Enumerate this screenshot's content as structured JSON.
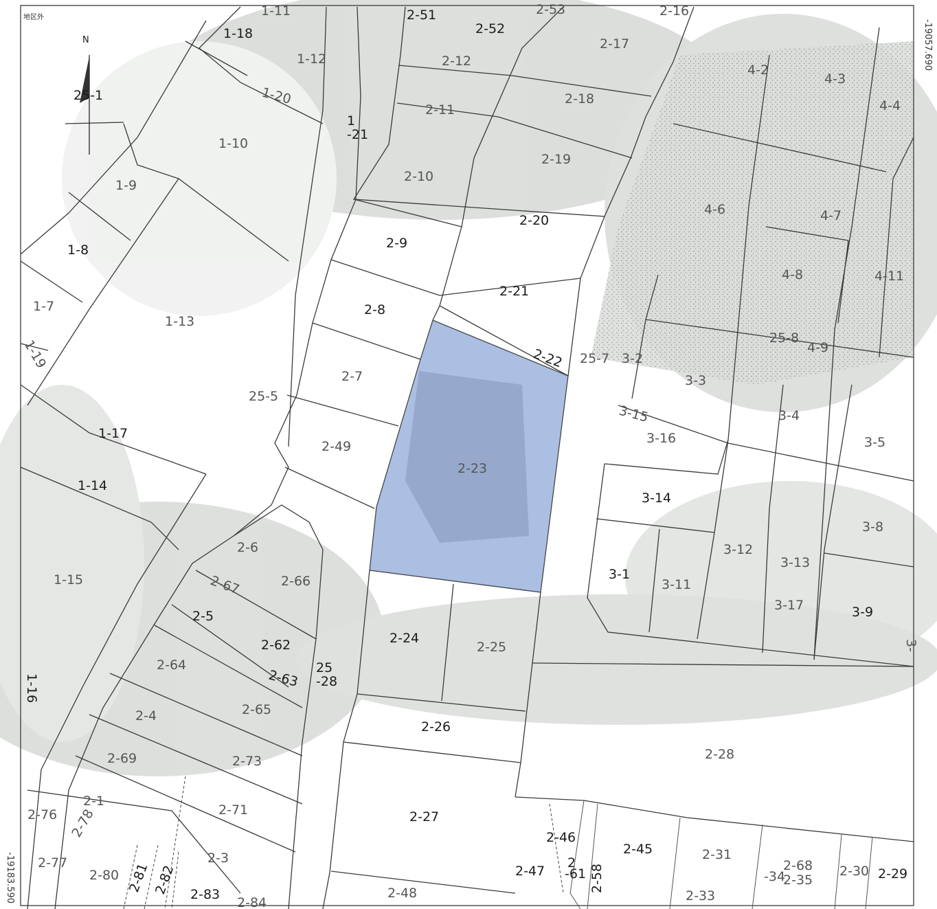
{
  "north": {
    "label": "N"
  },
  "highlight_color": "#8fa9d8",
  "coords": {
    "top_right": "-19057.690",
    "bottom_left": "-19183.590"
  },
  "corner_note": "地区外",
  "parcels": [
    {
      "id": "1-11"
    },
    {
      "id": "1-18"
    },
    {
      "id": "1-12"
    },
    {
      "id": "25-1"
    },
    {
      "id": "1-20"
    },
    {
      "id": "1"
    },
    {
      "id": "-21"
    },
    {
      "id": "1-10"
    },
    {
      "id": "1-9"
    },
    {
      "id": "1-8"
    },
    {
      "id": "1-7"
    },
    {
      "id": "1-13"
    },
    {
      "id": "1-17"
    },
    {
      "id": "1-14"
    },
    {
      "id": "1-15"
    },
    {
      "id": "1-16"
    },
    {
      "id": "1-19"
    },
    {
      "id": "25-5"
    },
    {
      "id": "2-51"
    },
    {
      "id": "2-52"
    },
    {
      "id": "2-53"
    },
    {
      "id": "2-16"
    },
    {
      "id": "2-17"
    },
    {
      "id": "2-12"
    },
    {
      "id": "2-11"
    },
    {
      "id": "2-18"
    },
    {
      "id": "2-19"
    },
    {
      "id": "2-10"
    },
    {
      "id": "2-20"
    },
    {
      "id": "2-9"
    },
    {
      "id": "2-21"
    },
    {
      "id": "2-8"
    },
    {
      "id": "2-22"
    },
    {
      "id": "2-7"
    },
    {
      "id": "2-49"
    },
    {
      "id": "2-23"
    },
    {
      "id": "2-6"
    },
    {
      "id": "2-66"
    },
    {
      "id": "2-67"
    },
    {
      "id": "2-5"
    },
    {
      "id": "2-62"
    },
    {
      "id": "2-64"
    },
    {
      "id": "2-63"
    },
    {
      "id": "25"
    },
    {
      "id": "-28"
    },
    {
      "id": "2-65"
    },
    {
      "id": "2-4"
    },
    {
      "id": "2-69"
    },
    {
      "id": "2-73"
    },
    {
      "id": "2-1"
    },
    {
      "id": "2-71"
    },
    {
      "id": "2-76"
    },
    {
      "id": "2-77"
    },
    {
      "id": "2-78"
    },
    {
      "id": "2-80"
    },
    {
      "id": "2-81"
    },
    {
      "id": "2-82"
    },
    {
      "id": "2-3"
    },
    {
      "id": "2-83"
    },
    {
      "id": "2-84"
    },
    {
      "id": "2-24"
    },
    {
      "id": "2-25"
    },
    {
      "id": "2-26"
    },
    {
      "id": "2-27"
    },
    {
      "id": "2-48"
    },
    {
      "id": "2-28"
    },
    {
      "id": "2-46"
    },
    {
      "id": "2-47"
    },
    {
      "id": "2"
    },
    {
      "id": "-61"
    },
    {
      "id": "2-58"
    },
    {
      "id": "2-45"
    },
    {
      "id": "2-31"
    },
    {
      "id": "2-33"
    },
    {
      "id": "-34"
    },
    {
      "id": "2-68"
    },
    {
      "id": "2-35"
    },
    {
      "id": "2-30"
    },
    {
      "id": "2-29"
    },
    {
      "id": "4-2"
    },
    {
      "id": "4-3"
    },
    {
      "id": "4-4"
    },
    {
      "id": "4-6"
    },
    {
      "id": "4-7"
    },
    {
      "id": "4-8"
    },
    {
      "id": "4-11"
    },
    {
      "id": "25-8"
    },
    {
      "id": "4-9"
    },
    {
      "id": "25-7"
    },
    {
      "id": "3-2"
    },
    {
      "id": "3-3"
    },
    {
      "id": "3-15"
    },
    {
      "id": "3-16"
    },
    {
      "id": "3-4"
    },
    {
      "id": "3-5"
    },
    {
      "id": "3-14"
    },
    {
      "id": "3-8"
    },
    {
      "id": "3-12"
    },
    {
      "id": "3-13"
    },
    {
      "id": "3-1"
    },
    {
      "id": "3-11"
    },
    {
      "id": "3-17"
    },
    {
      "id": "3-9"
    },
    {
      "id": "3-"
    }
  ]
}
